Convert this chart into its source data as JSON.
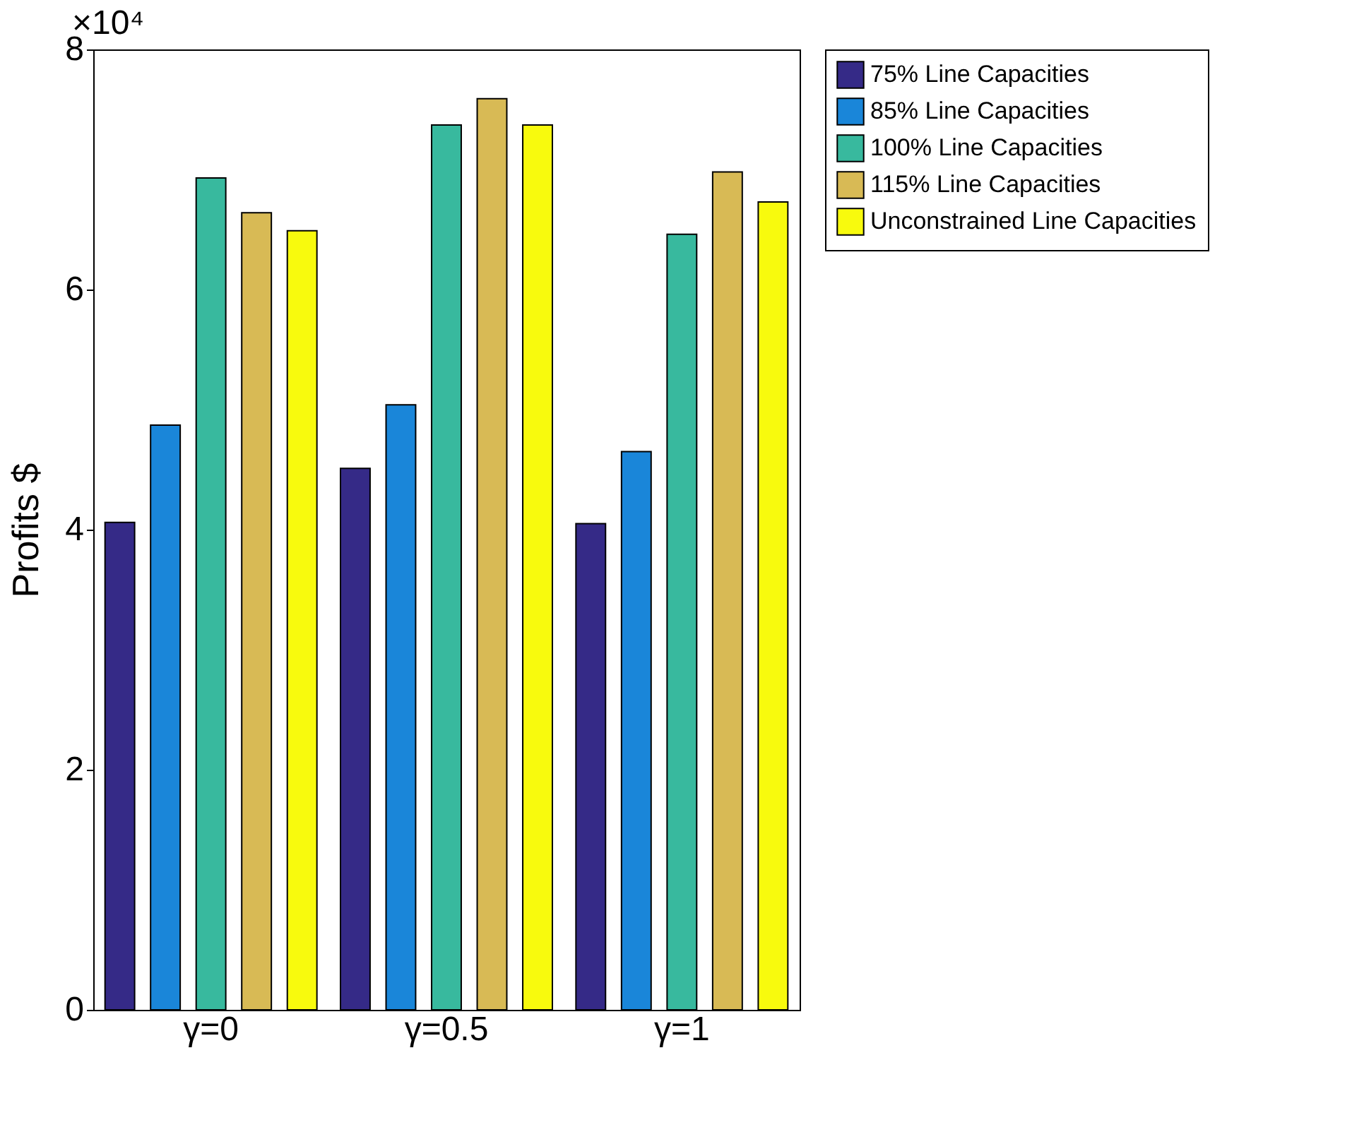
{
  "chart_data": {
    "type": "bar",
    "ylabel": "Profits $",
    "annotations": [
      "×10⁴"
    ],
    "categories": [
      "γ=0",
      "γ=0.5",
      "γ=1"
    ],
    "series": [
      {
        "name": "75% Line Capacities",
        "color": "#352a87",
        "values": [
          4.06,
          4.51,
          4.05
        ]
      },
      {
        "name": "85% Line Capacities",
        "color": "#1a86d9",
        "values": [
          4.87,
          5.04,
          4.65
        ]
      },
      {
        "name": "100% Line Capacities",
        "color": "#38b99e",
        "values": [
          6.93,
          7.37,
          6.46
        ]
      },
      {
        "name": "115% Line Capacities",
        "color": "#d8ba55",
        "values": [
          6.64,
          7.59,
          6.98
        ]
      },
      {
        "name": "Unconstrained Line Capacities",
        "color": "#f8fa0d",
        "values": [
          6.49,
          7.37,
          6.73
        ]
      }
    ],
    "ylim": [
      0,
      8
    ],
    "yticks": [
      0,
      2,
      4,
      6,
      8
    ],
    "grid": false,
    "legend": "right"
  }
}
